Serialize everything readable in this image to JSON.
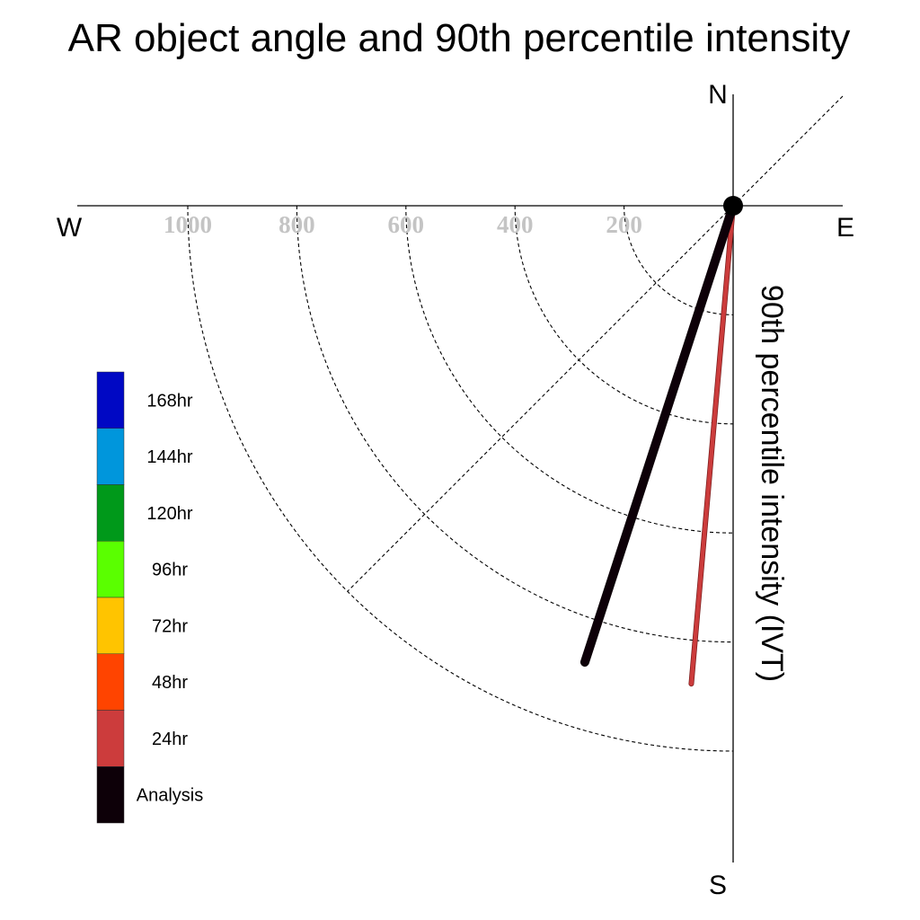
{
  "chart_data": {
    "type": "polar-vector",
    "title": "AR object angle and 90th percentile intensity",
    "directions": {
      "north": "N",
      "south": "S",
      "east": "E",
      "west": "W"
    },
    "radial_axis_label": "90th percentile intensity (IVT)",
    "radial_ticks": [
      200,
      400,
      600,
      800,
      1000
    ],
    "radial_tick_labels": [
      "200",
      "400",
      "600",
      "800",
      "1000"
    ],
    "radial_max": 1000,
    "grid": "dashed rings and dashed 45-degree diagonal",
    "legend_placement": "left",
    "legend": [
      {
        "label": "168hr",
        "color": "#0008c4"
      },
      {
        "label": "144hr",
        "color": "#0096dc"
      },
      {
        "label": "120hr",
        "color": "#00991a"
      },
      {
        "label": "96hr",
        "color": "#5aff00"
      },
      {
        "label": "72hr",
        "color": "#ffc400"
      },
      {
        "label": "48hr",
        "color": "#ff4400"
      },
      {
        "label": "24hr",
        "color": "#cc3c3c"
      },
      {
        "label": "Analysis",
        "color": "#0d0008"
      }
    ],
    "series": [
      {
        "name": "Analysis",
        "color": "#0d0008",
        "angle_deg_from_north": 198,
        "intensity": 880
      },
      {
        "name": "24hr",
        "color": "#cc3c3c",
        "angle_deg_from_north": 185,
        "intensity": 880
      }
    ]
  }
}
